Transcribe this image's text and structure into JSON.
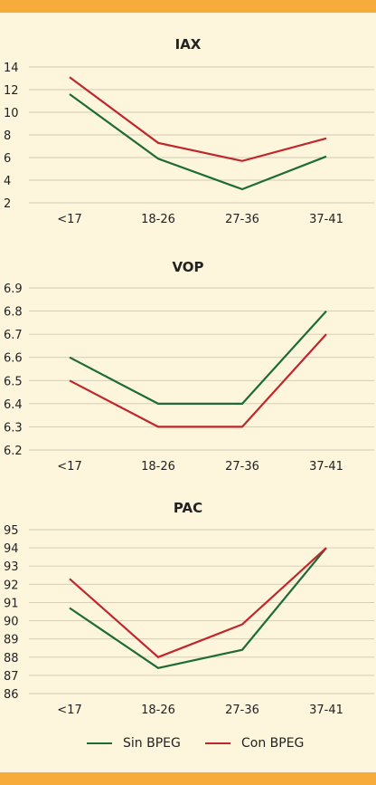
{
  "colors": {
    "sin": "#1e6b38",
    "con": "#c0272d",
    "band": "#f6ab3a",
    "background": "#fdf6dc"
  },
  "legend": [
    {
      "label": "Sin BPEG",
      "color": "#1e6b38"
    },
    {
      "label": "Con BPEG",
      "color": "#c0272d"
    }
  ],
  "chart_data": [
    {
      "type": "line",
      "title": "IAX",
      "categories": [
        "<17",
        "18-26",
        "27-36",
        "37-41"
      ],
      "yticks": [
        "2",
        "4",
        "6",
        "8",
        "10",
        "12",
        "14"
      ],
      "ylim": [
        2,
        14
      ],
      "grid": true,
      "series": [
        {
          "name": "Sin BPEG",
          "values": [
            11.6,
            5.9,
            3.2,
            6.1
          ]
        },
        {
          "name": "Con BPEG",
          "values": [
            13.1,
            7.3,
            5.7,
            7.7
          ]
        }
      ]
    },
    {
      "type": "line",
      "title": "VOP",
      "categories": [
        "<17",
        "18-26",
        "27-36",
        "37-41"
      ],
      "yticks": [
        "6.2",
        "6.3",
        "6.4",
        "6.5",
        "6.6",
        "6.7",
        "6.8",
        "6.9"
      ],
      "ylim": [
        6.2,
        6.9
      ],
      "grid": true,
      "series": [
        {
          "name": "Sin BPEG",
          "values": [
            6.6,
            6.4,
            6.4,
            6.8
          ]
        },
        {
          "name": "Con BPEG",
          "values": [
            6.5,
            6.3,
            6.3,
            6.7
          ]
        }
      ]
    },
    {
      "type": "line",
      "title": "PAC",
      "categories": [
        "<17",
        "18-26",
        "27-36",
        "37-41"
      ],
      "yticks": [
        "86",
        "87",
        "88",
        "89",
        "90",
        "91",
        "92",
        "93",
        "94",
        "95"
      ],
      "ylim": [
        86,
        95
      ],
      "grid": true,
      "series": [
        {
          "name": "Sin BPEG",
          "values": [
            90.7,
            87.4,
            88.4,
            94.0
          ]
        },
        {
          "name": "Con BPEG",
          "values": [
            92.3,
            88.0,
            89.8,
            94.0
          ]
        }
      ]
    }
  ]
}
